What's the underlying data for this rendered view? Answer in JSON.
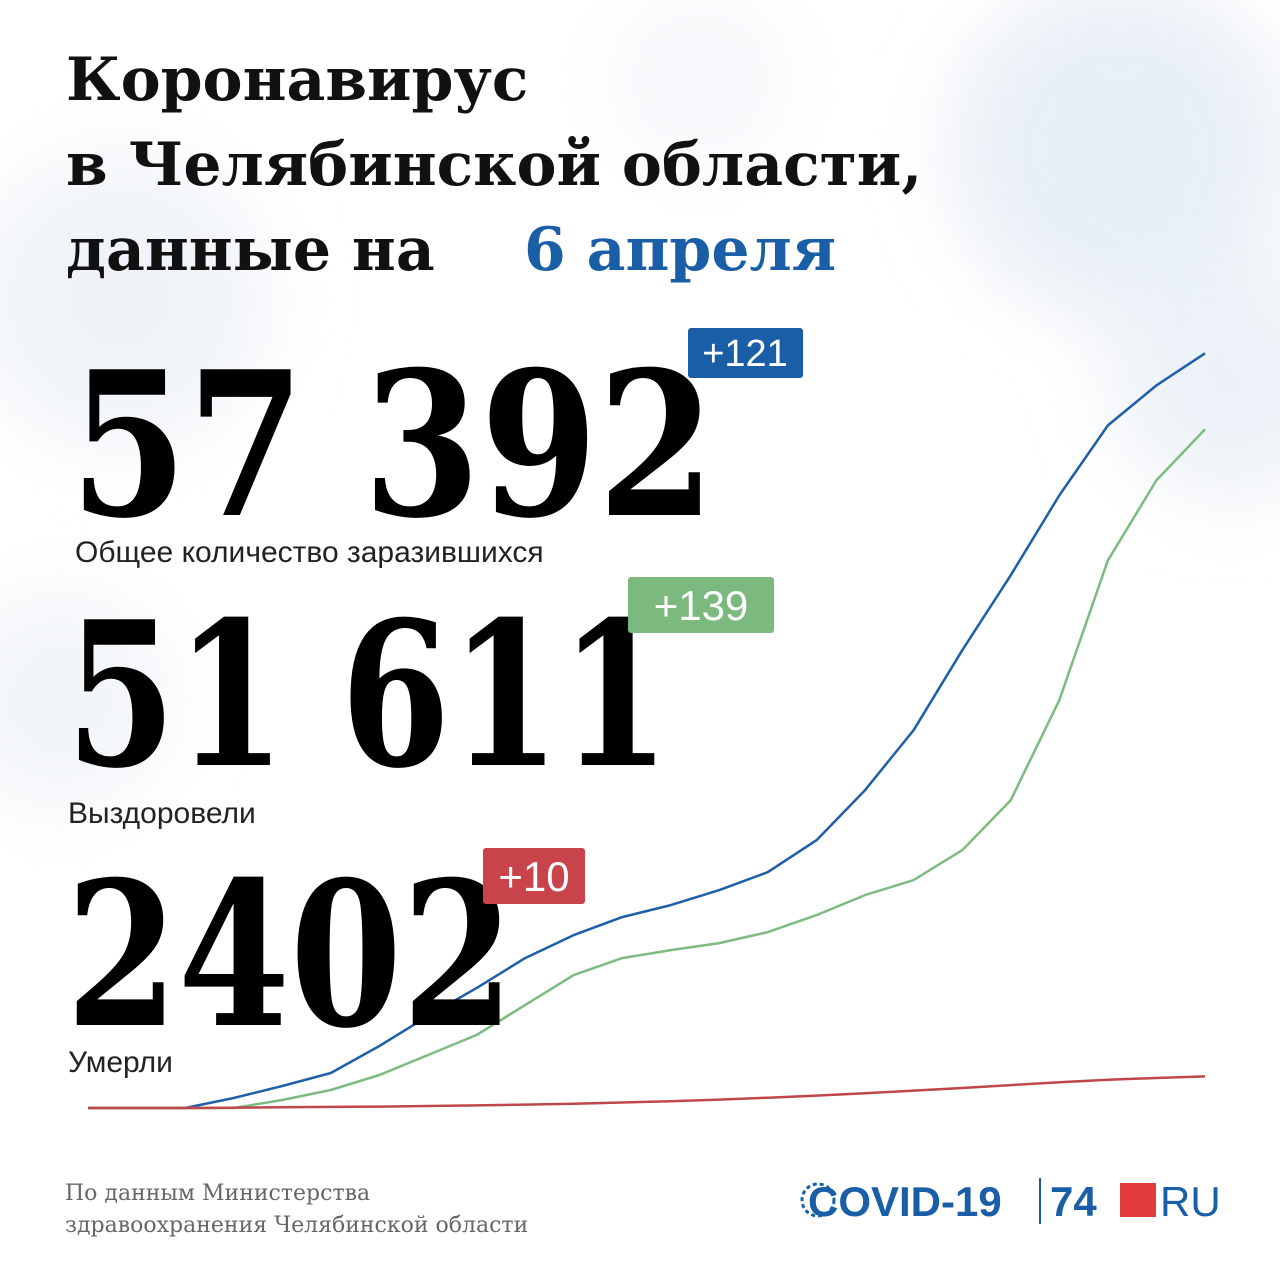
{
  "header": {
    "title_lines": [
      "Коронавирус",
      "в Челябинской области,"
    ],
    "date_prefix": "данные на",
    "date": "6 апреля"
  },
  "stats": [
    {
      "value": "57 392",
      "change": "+121",
      "label": "Общее количество заразившихся"
    },
    {
      "value": "51 611",
      "change": "+139",
      "label": "Выздоровели"
    },
    {
      "value": "2402",
      "change": "+10",
      "label": "Умерли"
    }
  ],
  "footer": {
    "source_lines": [
      "По данным Министерства",
      "здравоохранения Челябинской области"
    ],
    "logo": {
      "brand": "COVID-19",
      "site_number": "74",
      "site_suffix": "RU"
    }
  },
  "chart_data": {
    "type": "line",
    "ylim": [
      0,
      60000
    ],
    "series": [
      {
        "color": "#1f5fa8",
        "values": [
          0,
          0,
          0,
          760,
          1672,
          2660,
          4712,
          6992,
          9120,
          11400,
          13148,
          14516,
          15428,
          16568,
          17936,
          20368,
          24168,
          28728,
          34808,
          40508,
          46588,
          51908,
          54948,
          57392
        ]
      },
      {
        "color": "#7dbb80",
        "values": [
          0,
          0,
          0,
          0,
          608,
          1368,
          2508,
          4028,
          5548,
          7828,
          10108,
          11400,
          12008,
          12540,
          13376,
          14668,
          16188,
          17328,
          19608,
          23408,
          31008,
          41648,
          47728,
          51611
        ]
      },
      {
        "color": "#c0464a",
        "values": [
          0,
          0,
          0,
          20,
          50,
          80,
          110,
          150,
          200,
          260,
          330,
          420,
          520,
          640,
          780,
          940,
          1120,
          1320,
          1520,
          1740,
          1960,
          2150,
          2280,
          2402
        ]
      }
    ]
  }
}
